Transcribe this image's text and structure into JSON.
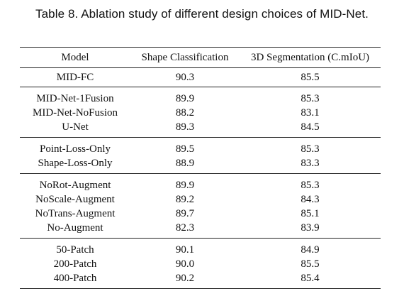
{
  "caption": "Table 8.  Ablation study of different design choices of MID-Net.",
  "table": {
    "headers": [
      "Model",
      "Shape Classification",
      "3D Segmentation (C.mIoU)"
    ],
    "groups": [
      [
        [
          "MID-FC",
          "90.3",
          "85.5"
        ]
      ],
      [
        [
          "MID-Net-1Fusion",
          "89.9",
          "85.3"
        ],
        [
          "MID-Net-NoFusion",
          "88.2",
          "83.1"
        ],
        [
          "U-Net",
          "89.3",
          "84.5"
        ]
      ],
      [
        [
          "Point-Loss-Only",
          "89.5",
          "85.3"
        ],
        [
          "Shape-Loss-Only",
          "88.9",
          "83.3"
        ]
      ],
      [
        [
          "NoRot-Augment",
          "89.9",
          "85.3"
        ],
        [
          "NoScale-Augment",
          "89.2",
          "84.3"
        ],
        [
          "NoTrans-Augment",
          "89.7",
          "85.1"
        ],
        [
          "No-Augment",
          "82.3",
          "83.9"
        ]
      ],
      [
        [
          "50-Patch",
          "90.1",
          "84.9"
        ],
        [
          "200-Patch",
          "90.0",
          "85.5"
        ],
        [
          "400-Patch",
          "90.2",
          "85.4"
        ]
      ]
    ]
  }
}
